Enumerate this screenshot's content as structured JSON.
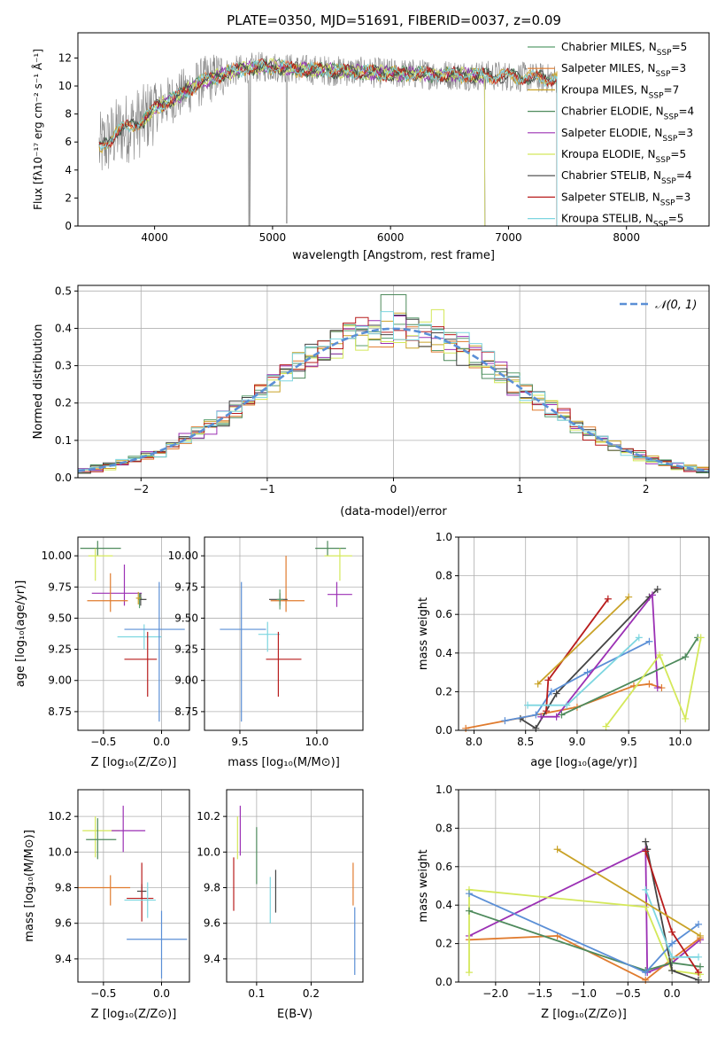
{
  "figure_title": "PLATE=0350, MJD=51691, FIBERID=0037, z=0.09",
  "colors": {
    "Chabrier MILES": "#5a9e6e",
    "Salpeter MILES": "#e07b2e",
    "Kroupa MILES": "#c9a227",
    "Chabrier ELODIE": "#4e8a5c",
    "Salpeter ELODIE": "#9b30b4",
    "Kroupa ELODIE": "#d4e85a",
    "Chabrier STELIB": "#444444",
    "Salpeter STELIB": "#b81c1c",
    "Kroupa STELIB": "#7dd6e0",
    "data": "#808080",
    "normal": "#5b8fd6"
  },
  "chart_data": [
    {
      "type": "line",
      "id": "spectrum",
      "xlabel": "wavelength [Angstrom, rest frame]",
      "ylabel": "Flux [fλ10⁻¹⁷ erg cm⁻² s⁻¹ Å⁻¹]",
      "xlim": [
        3350,
        8700
      ],
      "ylim": [
        0,
        13.8
      ],
      "xticks": [
        4000,
        5000,
        6000,
        7000,
        8000
      ],
      "yticks": [
        0,
        2,
        4,
        6,
        8,
        10,
        12
      ],
      "grid": false,
      "legend_position": "right",
      "legend": [
        {
          "label": "Chabrier MILES, N",
          "sub": "SSP",
          "tail": "=5",
          "key": "Chabrier MILES"
        },
        {
          "label": "Salpeter MILES, N",
          "sub": "SSP",
          "tail": "=3",
          "key": "Salpeter MILES"
        },
        {
          "label": "Kroupa MILES, N",
          "sub": "SSP",
          "tail": "=7",
          "key": "Kroupa MILES"
        },
        {
          "label": "Chabrier ELODIE, N",
          "sub": "SSP",
          "tail": "=4",
          "key": "Chabrier ELODIE"
        },
        {
          "label": "Salpeter ELODIE, N",
          "sub": "SSP",
          "tail": "=3",
          "key": "Salpeter ELODIE"
        },
        {
          "label": "Kroupa ELODIE, N",
          "sub": "SSP",
          "tail": "=5",
          "key": "Kroupa ELODIE"
        },
        {
          "label": "Chabrier STELIB, N",
          "sub": "SSP",
          "tail": "=4",
          "key": "Chabrier STELIB"
        },
        {
          "label": "Salpeter STELIB, N",
          "sub": "SSP",
          "tail": "=3",
          "key": "Salpeter STELIB"
        },
        {
          "label": "Kroupa STELIB, N",
          "sub": "SSP",
          "tail": "=5",
          "key": "Kroupa STELIB"
        }
      ],
      "continuum": {
        "x": [
          3530,
          3700,
          3900,
          4000,
          4200,
          4400,
          4600,
          4800,
          5000,
          5200,
          5500,
          6000,
          6500,
          7000,
          7400
        ],
        "y": [
          5.5,
          6.8,
          7.5,
          8.4,
          9.3,
          10.3,
          10.9,
          11.3,
          11.4,
          11.2,
          11.1,
          10.9,
          10.8,
          10.7,
          10.5
        ]
      }
    },
    {
      "type": "histogram",
      "id": "residuals",
      "xlabel": "(data-model)/error",
      "ylabel": "Normed distribution",
      "xlim": [
        -2.5,
        2.5
      ],
      "ylim": [
        0,
        0.515
      ],
      "xticks": [
        -2,
        -1,
        0,
        1,
        2
      ],
      "yticks": [
        0.0,
        0.1,
        0.2,
        0.3,
        0.4,
        0.5
      ],
      "grid": true,
      "bin_width": 0.1,
      "legend": {
        "label": "𝒩(0, 1)",
        "position": "top-right"
      },
      "series_keys": [
        "Chabrier MILES",
        "Salpeter MILES",
        "Kroupa MILES",
        "Chabrier ELODIE",
        "Salpeter ELODIE",
        "Kroupa ELODIE",
        "Chabrier STELIB",
        "Salpeter STELIB",
        "Kroupa STELIB"
      ]
    },
    {
      "type": "errorbar",
      "id": "age_vs_Z",
      "xlabel": "Z [log₁₀(Z/Z⊙)]",
      "ylabel": "age  [log₁₀(age/yr)]",
      "xlim": [
        -0.72,
        0.24
      ],
      "ylim": [
        8.6,
        10.15
      ],
      "xticks": [
        -0.5,
        0.0
      ],
      "yticks": [
        8.75,
        9.0,
        9.25,
        9.5,
        9.75,
        10.0
      ],
      "grid": true,
      "points": [
        {
          "key": "Chabrier ELODIE",
          "x": -0.55,
          "y": 10.06,
          "xerr": [
            0.15,
            0.2
          ],
          "yerr": [
            0.06,
            0.06
          ]
        },
        {
          "key": "Kroupa ELODIE",
          "x": -0.57,
          "y": 10.0,
          "xerr": [
            0.06,
            0.15
          ],
          "yerr": [
            0.2,
            0.06
          ]
        },
        {
          "key": "Salpeter ELODIE",
          "x": -0.32,
          "y": 9.7,
          "xerr": [
            0.28,
            0.15
          ],
          "yerr": [
            0.1,
            0.23
          ]
        },
        {
          "key": "Salpeter MILES",
          "x": -0.44,
          "y": 9.64,
          "xerr": [
            0.2,
            0.15
          ],
          "yerr": [
            0.09,
            0.22
          ]
        },
        {
          "key": "Chabrier STELIB",
          "x": -0.18,
          "y": 9.65,
          "xerr": [
            0.02,
            0.05
          ],
          "yerr": [
            0.05,
            0.05
          ]
        },
        {
          "key": "Chabrier MILES",
          "x": -0.19,
          "y": 9.66,
          "xerr": [
            0.01,
            0.02
          ],
          "yerr": [
            0.08,
            0.04
          ]
        },
        {
          "key": "Kroupa STELIB",
          "x": -0.15,
          "y": 9.35,
          "xerr": [
            0.23,
            0.15
          ],
          "yerr": [
            0.1,
            0.1
          ]
        },
        {
          "key": "Salpeter STELIB",
          "x": -0.12,
          "y": 9.17,
          "xerr": [
            0.2,
            0.08
          ],
          "yerr": [
            0.3,
            0.22
          ]
        },
        {
          "key": "Kroupa MILES",
          "x": -0.2,
          "y": 9.66,
          "xerr": [
            0.02,
            0.02
          ],
          "yerr": [
            0.05,
            0.05
          ]
        },
        {
          "key": "normal",
          "x": -0.02,
          "y": 9.41,
          "xerr": [
            0.3,
            0.22
          ],
          "yerr": [
            0.74,
            0.38
          ]
        }
      ]
    },
    {
      "type": "errorbar",
      "id": "age_vs_mass",
      "xlabel": "mass [log₁₀(M/M⊙)]",
      "ylabel": "",
      "xlim": [
        9.27,
        10.3
      ],
      "ylim": [
        8.6,
        10.15
      ],
      "xticks": [
        9.5,
        10.0
      ],
      "yticks": [
        8.75,
        9.0,
        9.25,
        9.5,
        9.75,
        10.0
      ],
      "grid": true,
      "points": [
        {
          "key": "Chabrier ELODIE",
          "x": 10.07,
          "y": 10.06,
          "xerr": [
            0.08,
            0.12
          ],
          "yerr": [
            0.06,
            0.06
          ]
        },
        {
          "key": "Kroupa ELODIE",
          "x": 10.15,
          "y": 10.0,
          "xerr": [
            0.1,
            0.08
          ],
          "yerr": [
            0.2,
            0.06
          ]
        },
        {
          "key": "Salpeter ELODIE",
          "x": 10.13,
          "y": 9.69,
          "xerr": [
            0.06,
            0.1
          ],
          "yerr": [
            0.1,
            0.1
          ]
        },
        {
          "key": "Salpeter MILES",
          "x": 9.8,
          "y": 9.64,
          "xerr": [
            0.1,
            0.12
          ],
          "yerr": [
            0.09,
            0.36
          ]
        },
        {
          "key": "Chabrier STELIB",
          "x": 9.76,
          "y": 9.65,
          "xerr": [
            0.07,
            0.05
          ],
          "yerr": [
            0.05,
            0.05
          ]
        },
        {
          "key": "Chabrier MILES",
          "x": 9.76,
          "y": 9.65,
          "xerr": [
            0.02,
            0.02
          ],
          "yerr": [
            0.08,
            0.08
          ]
        },
        {
          "key": "Kroupa STELIB",
          "x": 9.68,
          "y": 9.37,
          "xerr": [
            0.06,
            0.08
          ],
          "yerr": [
            0.14,
            0.1
          ]
        },
        {
          "key": "Salpeter STELIB",
          "x": 9.75,
          "y": 9.17,
          "xerr": [
            0.08,
            0.15
          ],
          "yerr": [
            0.3,
            0.22
          ]
        },
        {
          "key": "normal",
          "x": 9.51,
          "y": 9.41,
          "xerr": [
            0.14,
            0.16
          ],
          "yerr": [
            0.74,
            0.38
          ]
        }
      ]
    },
    {
      "type": "line",
      "id": "massweight_vs_age",
      "xlabel": "age  [log₁₀(age/yr)]",
      "ylabel": "mass weight",
      "xlim": [
        7.85,
        10.28
      ],
      "ylim": [
        0,
        1.0
      ],
      "xticks": [
        8.0,
        8.5,
        9.0,
        9.5,
        10.0
      ],
      "yticks": [
        0.0,
        0.2,
        0.4,
        0.6,
        0.8,
        1.0
      ],
      "grid": true,
      "series": [
        {
          "key": "Salpeter MILES",
          "x": [
            7.92,
            9.0,
            9.55,
            9.7,
            9.82
          ],
          "y": [
            0.01,
            0.12,
            0.23,
            0.24,
            0.22
          ]
        },
        {
          "key": "Chabrier STELIB",
          "x": [
            8.45,
            8.6,
            8.8,
            9.7,
            9.78
          ],
          "y": [
            0.06,
            0.01,
            0.19,
            0.69,
            0.73
          ]
        },
        {
          "key": "normal",
          "x": [
            8.3,
            8.6,
            8.75,
            9.1,
            9.7
          ],
          "y": [
            0.05,
            0.08,
            0.2,
            0.3,
            0.46
          ]
        },
        {
          "key": "Salpeter STELIB",
          "x": [
            8.7,
            8.72,
            9.3
          ],
          "y": [
            0.1,
            0.26,
            0.68
          ]
        },
        {
          "key": "Salpeter ELODIE",
          "x": [
            8.65,
            8.8,
            9.73,
            9.78
          ],
          "y": [
            0.07,
            0.07,
            0.7,
            0.22
          ]
        },
        {
          "key": "Kroupa STELIB",
          "x": [
            8.52,
            8.9,
            9.6
          ],
          "y": [
            0.13,
            0.13,
            0.48
          ]
        },
        {
          "key": "Kroupa MILES",
          "x": [
            8.62,
            9.5
          ],
          "y": [
            0.24,
            0.69
          ]
        },
        {
          "key": "Chabrier ELODIE",
          "x": [
            8.85,
            10.05,
            10.17
          ],
          "y": [
            0.08,
            0.38,
            0.48
          ]
        },
        {
          "key": "Kroupa ELODIE",
          "x": [
            9.28,
            9.8,
            10.05,
            10.2
          ],
          "y": [
            0.02,
            0.39,
            0.06,
            0.48
          ]
        }
      ]
    },
    {
      "type": "errorbar",
      "id": "mass_vs_Z",
      "xlabel": "Z [log₁₀(Z/Z⊙)]",
      "ylabel": "mass [log₁₀(M/M⊙)]",
      "xlim": [
        -0.72,
        0.24
      ],
      "ylim": [
        9.27,
        10.35
      ],
      "xticks": [
        -0.5,
        0.0
      ],
      "yticks": [
        9.4,
        9.6,
        9.8,
        10.0,
        10.2
      ],
      "grid": true,
      "points": [
        {
          "key": "Kroupa ELODIE",
          "x": -0.57,
          "y": 10.12,
          "xerr": [
            0.11,
            0.21
          ],
          "yerr": [
            0.15,
            0.08
          ]
        },
        {
          "key": "Salpeter ELODIE",
          "x": -0.33,
          "y": 10.12,
          "xerr": [
            0.1,
            0.19
          ],
          "yerr": [
            0.12,
            0.14
          ]
        },
        {
          "key": "Chabrier ELODIE",
          "x": -0.55,
          "y": 10.07,
          "xerr": [
            0.1,
            0.16
          ],
          "yerr": [
            0.11,
            0.12
          ]
        },
        {
          "key": "Salpeter MILES",
          "x": -0.44,
          "y": 9.8,
          "xerr": [
            0.28,
            0.17
          ],
          "yerr": [
            0.1,
            0.07
          ]
        },
        {
          "key": "Chabrier STELIB",
          "x": -0.17,
          "y": 9.78,
          "xerr": [
            0.04,
            0.04
          ],
          "yerr": [
            0.04,
            0.04
          ]
        },
        {
          "key": "Salpeter STELIB",
          "x": -0.17,
          "y": 9.74,
          "xerr": [
            0.13,
            0.1
          ],
          "yerr": [
            0.13,
            0.2
          ]
        },
        {
          "key": "Kroupa STELIB",
          "x": -0.12,
          "y": 9.73,
          "xerr": [
            0.2,
            0.07
          ],
          "yerr": [
            0.1,
            0.1
          ]
        },
        {
          "key": "normal",
          "x": 0.0,
          "y": 9.51,
          "xerr": [
            0.3,
            0.22
          ],
          "yerr": [
            0.22,
            0.16
          ]
        }
      ]
    },
    {
      "type": "errorbar",
      "id": "mass_vs_ebv",
      "xlabel": "E(B-V)",
      "ylabel": "",
      "xlim": [
        0.045,
        0.295
      ],
      "ylim": [
        9.27,
        10.35
      ],
      "xticks": [
        0.1,
        0.2
      ],
      "yticks": [
        9.4,
        9.6,
        9.8,
        10.0,
        10.2
      ],
      "grid": true,
      "points": [
        {
          "key": "Salpeter ELODIE",
          "x": 0.07,
          "y": 10.12,
          "xerr": [
            0,
            0
          ],
          "yerr": [
            0.14,
            0.14
          ]
        },
        {
          "key": "Kroupa ELODIE",
          "x": 0.065,
          "y": 10.1,
          "xerr": [
            0,
            0
          ],
          "yerr": [
            0.14,
            0.1
          ]
        },
        {
          "key": "Chabrier ELODIE",
          "x": 0.1,
          "y": 9.98,
          "xerr": [
            0,
            0
          ],
          "yerr": [
            0.16,
            0.16
          ]
        },
        {
          "key": "Salpeter STELIB",
          "x": 0.058,
          "y": 9.82,
          "xerr": [
            0,
            0
          ],
          "yerr": [
            0.15,
            0.15
          ]
        },
        {
          "key": "Kroupa STELIB",
          "x": 0.125,
          "y": 9.73,
          "xerr": [
            0,
            0
          ],
          "yerr": [
            0.13,
            0.13
          ]
        },
        {
          "key": "Chabrier STELIB",
          "x": 0.135,
          "y": 9.78,
          "xerr": [
            0,
            0
          ],
          "yerr": [
            0.12,
            0.12
          ]
        },
        {
          "key": "Salpeter MILES",
          "x": 0.277,
          "y": 9.82,
          "xerr": [
            0,
            0
          ],
          "yerr": [
            0.12,
            0.12
          ]
        },
        {
          "key": "normal",
          "x": 0.28,
          "y": 9.5,
          "xerr": [
            0,
            0
          ],
          "yerr": [
            0.19,
            0.19
          ]
        }
      ]
    },
    {
      "type": "line",
      "id": "massweight_vs_Z",
      "xlabel": "Z [log₁₀(Z/Z⊙)]",
      "ylabel": "mass weight",
      "xlim": [
        -2.42,
        0.42
      ],
      "ylim": [
        0,
        1.0
      ],
      "xticks": [
        -2.0,
        -1.5,
        -1.0,
        -0.5,
        0.0
      ],
      "yticks": [
        0.0,
        0.2,
        0.4,
        0.6,
        0.8,
        1.0
      ],
      "grid": true,
      "series": [
        {
          "key": "Salpeter ELODIE",
          "x": [
            -2.3,
            -0.3,
            -0.28,
            0.0,
            0.32
          ],
          "y": [
            0.24,
            0.69,
            0.05,
            0.1,
            0.22
          ]
        },
        {
          "key": "Salpeter MILES",
          "x": [
            -2.3,
            -1.3,
            -0.3,
            0.0,
            0.32
          ],
          "y": [
            0.22,
            0.24,
            0.01,
            0.12,
            0.23
          ]
        },
        {
          "key": "Kroupa ELODIE",
          "x": [
            -2.3,
            -2.3,
            -0.3,
            0.0,
            0.32
          ],
          "y": [
            0.05,
            0.48,
            0.39,
            0.06,
            0.04
          ]
        },
        {
          "key": "Chabrier ELODIE",
          "x": [
            -2.3,
            -0.3,
            0.0,
            0.32
          ],
          "y": [
            0.37,
            0.06,
            0.1,
            0.08
          ]
        },
        {
          "key": "normal",
          "x": [
            -2.3,
            -0.3,
            0.0,
            0.3
          ],
          "y": [
            0.46,
            0.05,
            0.2,
            0.3
          ]
        },
        {
          "key": "Chabrier STELIB",
          "x": [
            -0.3,
            -0.28,
            0.0,
            0.3
          ],
          "y": [
            0.73,
            0.69,
            0.06,
            0.01
          ]
        },
        {
          "key": "Salpeter STELIB",
          "x": [
            -0.3,
            0.0,
            0.3
          ],
          "y": [
            0.68,
            0.26,
            0.05
          ]
        },
        {
          "key": "Kroupa STELIB",
          "x": [
            -0.3,
            0.0,
            0.3
          ],
          "y": [
            0.48,
            0.13,
            0.13
          ]
        },
        {
          "key": "Kroupa MILES",
          "x": [
            -1.3,
            0.32
          ],
          "y": [
            0.69,
            0.24
          ]
        }
      ]
    }
  ]
}
